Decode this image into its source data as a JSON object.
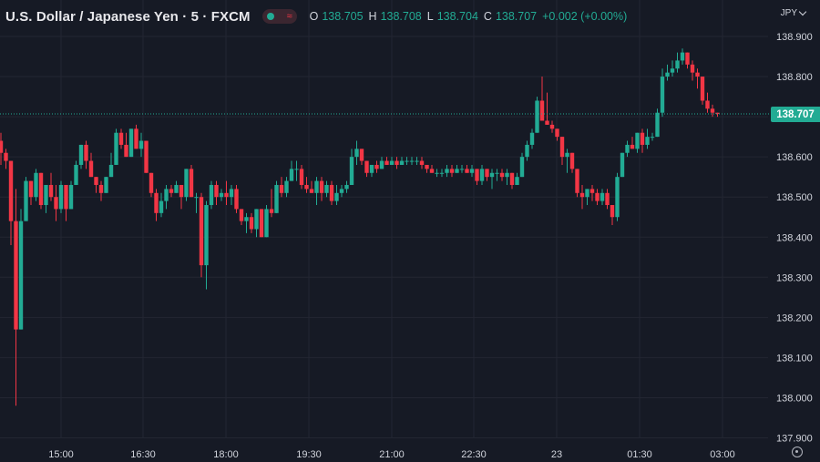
{
  "header": {
    "symbol": "U.S. Dollar / Japanese Yen",
    "interval": "5",
    "source": "FXCM",
    "separator": "·",
    "ohlc": {
      "o_label": "O",
      "o_value": "138.705",
      "h_label": "H",
      "h_value": "138.708",
      "l_label": "L",
      "l_value": "138.704",
      "c_label": "C",
      "c_value": "138.707",
      "change": "+0.002 (+0.00%)"
    }
  },
  "currency": "JPY",
  "last_price": "138.707",
  "colors": {
    "background": "#161a25",
    "grid": "#232632",
    "up": "#22ab94",
    "down": "#f23645",
    "text": "#d1d4dc"
  },
  "icons": [
    "status-dot-icon",
    "wave-icon",
    "chevron-down-icon",
    "settings-icon"
  ],
  "chart_data": {
    "type": "candlestick",
    "title": "U.S. Dollar / Japanese Yen · 5 · FXCM",
    "y_range": [
      137.88,
      138.925
    ],
    "y_ticks": [
      "138.900",
      "138.800",
      "138.700",
      "138.600",
      "138.500",
      "138.400",
      "138.300",
      "138.200",
      "138.100",
      "138.000",
      "137.900"
    ],
    "x_ticks": [
      "15:00",
      "16:30",
      "18:00",
      "19:30",
      "21:00",
      "22:30",
      "23",
      "01:30",
      "03:00"
    ],
    "last_price": 138.707,
    "grid": true,
    "candles": [
      [
        138.64,
        138.66,
        138.58,
        138.61
      ],
      [
        138.61,
        138.62,
        138.57,
        138.59
      ],
      [
        138.59,
        138.59,
        138.38,
        138.44
      ],
      [
        138.44,
        138.52,
        137.98,
        138.17
      ],
      [
        138.17,
        138.47,
        138.17,
        138.44
      ],
      [
        138.44,
        138.55,
        138.44,
        138.54
      ],
      [
        138.54,
        138.54,
        138.48,
        138.5
      ],
      [
        138.5,
        138.57,
        138.49,
        138.56
      ],
      [
        138.56,
        138.56,
        138.47,
        138.48
      ],
      [
        138.48,
        138.53,
        138.46,
        138.53
      ],
      [
        138.53,
        138.56,
        138.49,
        138.5
      ],
      [
        138.5,
        138.53,
        138.44,
        138.47
      ],
      [
        138.47,
        138.54,
        138.46,
        138.53
      ],
      [
        138.53,
        138.53,
        138.44,
        138.47
      ],
      [
        138.47,
        138.54,
        138.47,
        138.53
      ],
      [
        138.53,
        138.59,
        138.53,
        138.58
      ],
      [
        138.58,
        138.63,
        138.57,
        138.63
      ],
      [
        138.63,
        138.64,
        138.57,
        138.59
      ],
      [
        138.59,
        138.61,
        138.55,
        138.55
      ],
      [
        138.55,
        138.55,
        138.51,
        138.53
      ],
      [
        138.53,
        138.54,
        138.49,
        138.51
      ],
      [
        138.51,
        138.55,
        138.51,
        138.55
      ],
      [
        138.55,
        138.61,
        138.55,
        138.58
      ],
      [
        138.58,
        138.67,
        138.58,
        138.66
      ],
      [
        138.66,
        138.67,
        138.62,
        138.63
      ],
      [
        138.63,
        138.66,
        138.6,
        138.6
      ],
      [
        138.6,
        138.67,
        138.6,
        138.67
      ],
      [
        138.67,
        138.68,
        138.62,
        138.62
      ],
      [
        138.62,
        138.66,
        138.6,
        138.64
      ],
      [
        138.64,
        138.64,
        138.56,
        138.56
      ],
      [
        138.56,
        138.56,
        138.5,
        138.51
      ],
      [
        138.51,
        138.52,
        138.44,
        138.46
      ],
      [
        138.46,
        138.51,
        138.45,
        138.49
      ],
      [
        138.49,
        138.53,
        138.47,
        138.52
      ],
      [
        138.52,
        138.53,
        138.5,
        138.51
      ],
      [
        138.51,
        138.54,
        138.51,
        138.53
      ],
      [
        138.53,
        138.53,
        138.47,
        138.5
      ],
      [
        138.5,
        138.57,
        138.49,
        138.57
      ],
      [
        138.57,
        138.58,
        138.5,
        138.5
      ],
      [
        138.5,
        138.51,
        138.46,
        138.5
      ],
      [
        138.5,
        138.51,
        138.3,
        138.33
      ],
      [
        138.33,
        138.49,
        138.27,
        138.48
      ],
      [
        138.48,
        138.54,
        138.47,
        138.53
      ],
      [
        138.53,
        138.54,
        138.48,
        138.5
      ],
      [
        138.5,
        138.52,
        138.49,
        138.51
      ],
      [
        138.51,
        138.54,
        138.48,
        138.5
      ],
      [
        138.5,
        138.53,
        138.48,
        138.52
      ],
      [
        138.52,
        138.53,
        138.46,
        138.47
      ],
      [
        138.47,
        138.47,
        138.43,
        138.44
      ],
      [
        138.44,
        138.46,
        138.41,
        138.45
      ],
      [
        138.45,
        138.46,
        138.41,
        138.42
      ],
      [
        138.42,
        138.47,
        138.4,
        138.47
      ],
      [
        138.47,
        138.47,
        138.4,
        138.4
      ],
      [
        138.4,
        138.48,
        138.4,
        138.47
      ],
      [
        138.47,
        138.52,
        138.45,
        138.46
      ],
      [
        138.46,
        138.54,
        138.46,
        138.53
      ],
      [
        138.53,
        138.55,
        138.5,
        138.51
      ],
      [
        138.51,
        138.55,
        138.5,
        138.54
      ],
      [
        138.54,
        138.59,
        138.54,
        138.57
      ],
      [
        138.57,
        138.59,
        138.54,
        138.57
      ],
      [
        138.57,
        138.58,
        138.52,
        138.53
      ],
      [
        138.53,
        138.55,
        138.51,
        138.52
      ],
      [
        138.52,
        138.54,
        138.51,
        138.51
      ],
      [
        138.51,
        138.55,
        138.48,
        138.54
      ],
      [
        138.54,
        138.55,
        138.49,
        138.51
      ],
      [
        138.51,
        138.54,
        138.5,
        138.53
      ],
      [
        138.53,
        138.54,
        138.48,
        138.49
      ],
      [
        138.49,
        138.53,
        138.48,
        138.51
      ],
      [
        138.51,
        138.53,
        138.5,
        138.52
      ],
      [
        138.52,
        138.54,
        138.51,
        138.53
      ],
      [
        138.53,
        138.62,
        138.53,
        138.6
      ],
      [
        138.6,
        138.64,
        138.58,
        138.62
      ],
      [
        138.62,
        138.62,
        138.58,
        138.59
      ],
      [
        138.59,
        138.59,
        138.55,
        138.56
      ],
      [
        138.56,
        138.58,
        138.55,
        138.58
      ],
      [
        138.58,
        138.59,
        138.56,
        138.57
      ],
      [
        138.57,
        138.6,
        138.57,
        138.59
      ],
      [
        138.59,
        138.6,
        138.58,
        138.58
      ],
      [
        138.58,
        138.6,
        138.58,
        138.59
      ],
      [
        138.59,
        138.6,
        138.57,
        138.58
      ],
      [
        138.58,
        138.6,
        138.58,
        138.59
      ],
      [
        138.59,
        138.6,
        138.58,
        138.59
      ],
      [
        138.59,
        138.6,
        138.58,
        138.59
      ],
      [
        138.59,
        138.6,
        138.58,
        138.59
      ],
      [
        138.59,
        138.6,
        138.57,
        138.58
      ],
      [
        138.58,
        138.58,
        138.56,
        138.57
      ],
      [
        138.57,
        138.58,
        138.56,
        138.56
      ],
      [
        138.56,
        138.57,
        138.55,
        138.56
      ],
      [
        138.56,
        138.57,
        138.55,
        138.56
      ],
      [
        138.56,
        138.58,
        138.55,
        138.57
      ],
      [
        138.57,
        138.58,
        138.55,
        138.56
      ],
      [
        138.56,
        138.58,
        138.56,
        138.57
      ],
      [
        138.57,
        138.58,
        138.56,
        138.57
      ],
      [
        138.57,
        138.58,
        138.56,
        138.56
      ],
      [
        138.56,
        138.58,
        138.55,
        138.57
      ],
      [
        138.57,
        138.57,
        138.53,
        138.54
      ],
      [
        138.54,
        138.58,
        138.53,
        138.57
      ],
      [
        138.57,
        138.57,
        138.54,
        138.55
      ],
      [
        138.55,
        138.57,
        138.52,
        138.56
      ],
      [
        138.56,
        138.57,
        138.54,
        138.56
      ],
      [
        138.56,
        138.57,
        138.54,
        138.55
      ],
      [
        138.55,
        138.57,
        138.53,
        138.56
      ],
      [
        138.56,
        138.56,
        138.52,
        138.53
      ],
      [
        138.53,
        138.56,
        138.53,
        138.55
      ],
      [
        138.55,
        138.61,
        138.55,
        138.6
      ],
      [
        138.6,
        138.64,
        138.59,
        138.63
      ],
      [
        138.63,
        138.67,
        138.62,
        138.66
      ],
      [
        138.66,
        138.75,
        138.66,
        138.74
      ],
      [
        138.74,
        138.8,
        138.69,
        138.69
      ],
      [
        138.69,
        138.76,
        138.68,
        138.68
      ],
      [
        138.68,
        138.69,
        138.66,
        138.67
      ],
      [
        138.67,
        138.67,
        138.64,
        138.65
      ],
      [
        138.65,
        138.65,
        138.58,
        138.6
      ],
      [
        138.6,
        138.62,
        138.56,
        138.61
      ],
      [
        138.61,
        138.61,
        138.56,
        138.57
      ],
      [
        138.57,
        138.57,
        138.5,
        138.51
      ],
      [
        138.51,
        138.53,
        138.47,
        138.5
      ],
      [
        138.5,
        138.52,
        138.48,
        138.52
      ],
      [
        138.52,
        138.53,
        138.49,
        138.51
      ],
      [
        138.51,
        138.52,
        138.48,
        138.49
      ],
      [
        138.49,
        138.52,
        138.48,
        138.51
      ],
      [
        138.51,
        138.52,
        138.47,
        138.48
      ],
      [
        138.48,
        138.48,
        138.43,
        138.45
      ],
      [
        138.45,
        138.56,
        138.44,
        138.55
      ],
      [
        138.55,
        138.61,
        138.55,
        138.61
      ],
      [
        138.61,
        138.64,
        138.6,
        138.63
      ],
      [
        138.63,
        138.65,
        138.62,
        138.62
      ],
      [
        138.62,
        138.66,
        138.61,
        138.66
      ],
      [
        138.66,
        138.67,
        138.61,
        138.63
      ],
      [
        138.63,
        138.67,
        138.62,
        138.65
      ],
      [
        138.65,
        138.66,
        138.64,
        138.65
      ],
      [
        138.65,
        138.72,
        138.65,
        138.71
      ],
      [
        138.71,
        138.82,
        138.7,
        138.8
      ],
      [
        138.8,
        138.83,
        138.79,
        138.81
      ],
      [
        138.81,
        138.84,
        138.8,
        138.82
      ],
      [
        138.82,
        138.86,
        138.81,
        138.84
      ],
      [
        138.84,
        138.87,
        138.83,
        138.86
      ],
      [
        138.86,
        138.86,
        138.82,
        138.83
      ],
      [
        138.83,
        138.84,
        138.79,
        138.81
      ],
      [
        138.81,
        138.82,
        138.77,
        138.8
      ],
      [
        138.8,
        138.8,
        138.73,
        138.74
      ],
      [
        138.74,
        138.76,
        138.71,
        138.72
      ],
      [
        138.72,
        138.73,
        138.7,
        138.71
      ],
      [
        138.71,
        138.71,
        138.7,
        138.707
      ]
    ]
  }
}
